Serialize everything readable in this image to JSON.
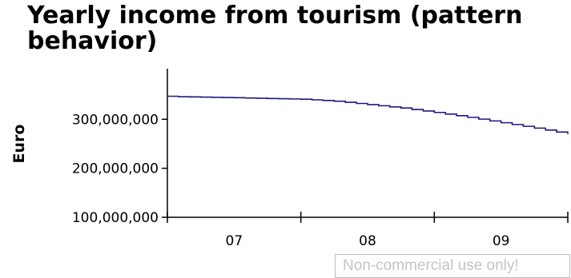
{
  "chart_data": {
    "type": "line",
    "title": "Yearly income from tourism (pattern behavior)",
    "ylabel": "Euro",
    "xlabel": "",
    "x_ticks": [
      "07",
      "08",
      "09"
    ],
    "y_ticks": [
      "100,000,000",
      "200,000,000",
      "300,000,000"
    ],
    "ylim": [
      100000000,
      400000000
    ],
    "xlim": [
      2006.5,
      2009.5
    ],
    "line_style": "step",
    "grid": false,
    "series": [
      {
        "color": "#1a1a80",
        "x": [
          2006.5,
          2006.6,
          2007.0,
          2007.5,
          2007.75,
          2008.0,
          2008.25,
          2008.5,
          2008.75,
          2009.0,
          2009.25,
          2009.5
        ],
        "y": [
          347000000,
          346000000,
          344000000,
          341000000,
          337000000,
          330000000,
          323000000,
          314000000,
          304000000,
          293000000,
          282000000,
          270000000
        ]
      }
    ]
  },
  "watermark": "Non-commercial use only!"
}
